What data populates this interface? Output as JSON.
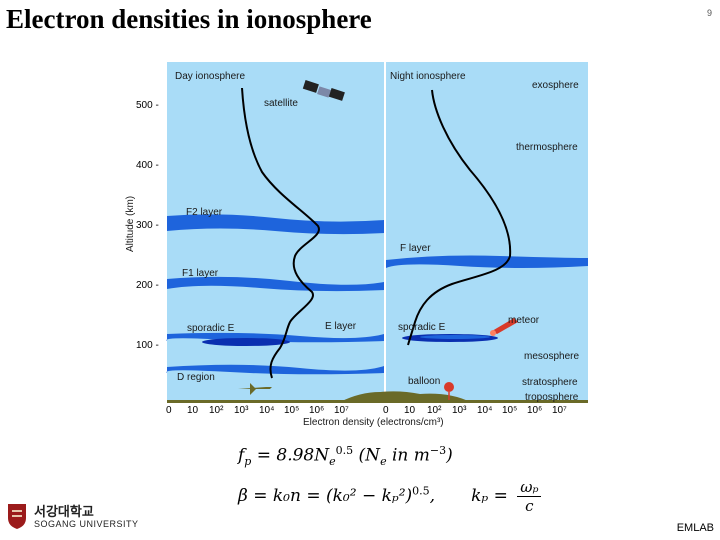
{
  "slide": {
    "title": "Electron densities in ionosphere",
    "page_number": "9",
    "footer": "EMLAB"
  },
  "logo": {
    "korean_name": "서강대학교",
    "english_name": "SOGANG UNIVERSITY"
  },
  "diagram": {
    "day_title": "Day ionosphere",
    "night_title": "Night ionosphere",
    "y_axis_label": "Altitude (km)",
    "x_axis_label": "Electron density (electrons/cm³)",
    "y_ticks": [
      "500 -",
      "400 -",
      "300 -",
      "200 -",
      "100 -"
    ],
    "x_ticks_day": [
      "0",
      "10",
      "10²",
      "10³",
      "10⁴",
      "10⁵",
      "10⁶",
      "10⁷"
    ],
    "x_ticks_night": [
      "0",
      "10",
      "10²",
      "10³",
      "10⁴",
      "10⁵",
      "10⁶",
      "10⁷"
    ],
    "day_labels": {
      "satellite": "satellite",
      "f2_layer": "F2 layer",
      "f1_layer": "F1 layer",
      "sporadic_e": "sporadic E",
      "e_layer": "E layer",
      "d_region": "D region"
    },
    "night_labels": {
      "f_layer": "F layer",
      "sporadic_e": "sporadic E",
      "meteor": "meteor",
      "balloon": "balloon"
    },
    "atmosphere_layers": [
      "exosphere",
      "thermosphere",
      "mesosphere",
      "stratosphere",
      "troposphere"
    ],
    "colors": {
      "sky": "#a9dcf7",
      "ionized_layer": "#1e64dc",
      "sporadic_e": "#0a2fb0",
      "curve": "#000000",
      "meteor": "#d83a2a",
      "ground": "#6a6a28"
    }
  },
  "equations": {
    "plasma_frequency": {
      "lhs": "f",
      "lhs_sub": "p",
      "rhs_pre": " = 8.98N",
      "rhs_sub": "e",
      "rhs_sup": "0.5",
      "note_pre": "  (N",
      "note_sub": "e",
      "note_mid": " in m",
      "note_sup": "−3",
      "note_post": ")"
    },
    "propagation": {
      "text": "β = k₀n = (k₀² − kₚ²)",
      "sup": "0.5",
      "sep": ",",
      "kp_lhs": "kₚ = ",
      "kp_num": "ωₚ",
      "kp_den": "c"
    }
  }
}
